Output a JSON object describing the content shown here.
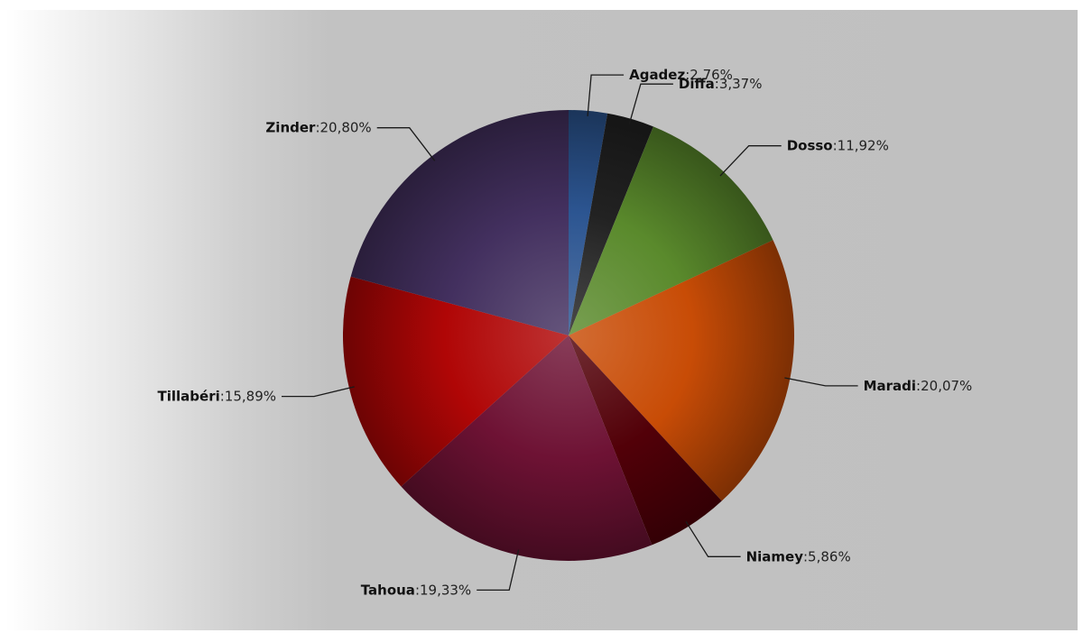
{
  "chart_data": {
    "type": "pie",
    "slices": [
      {
        "label": "Agadez",
        "pct_text": ":2,76%",
        "value": 2.76,
        "color": "#2c5591"
      },
      {
        "label": "Diffa",
        "pct_text": ":3,37%",
        "value": 3.37,
        "color": "#222222"
      },
      {
        "label": "Dosso",
        "pct_text": ":11,92%",
        "value": 11.92,
        "color": "#5a8a2c"
      },
      {
        "label": "Maradi",
        "pct_text": ":20,07%",
        "value": 20.07,
        "color": "#c84c06"
      },
      {
        "label": "Niamey",
        "pct_text": ":5,86%",
        "value": 5.86,
        "color": "#520008"
      },
      {
        "label": "Tahoua",
        "pct_text": ":19,33%",
        "value": 19.33,
        "color": "#6e1234"
      },
      {
        "label": "Tillabéri",
        "pct_text": ":15,89%",
        "value": 15.89,
        "color": "#b00606"
      },
      {
        "label": "Zinder",
        "pct_text": ":20,80%",
        "value": 20.8,
        "color": "#43305f"
      }
    ],
    "start_angle": "12 o'clock",
    "direction": "clockwise",
    "legend": "none"
  }
}
